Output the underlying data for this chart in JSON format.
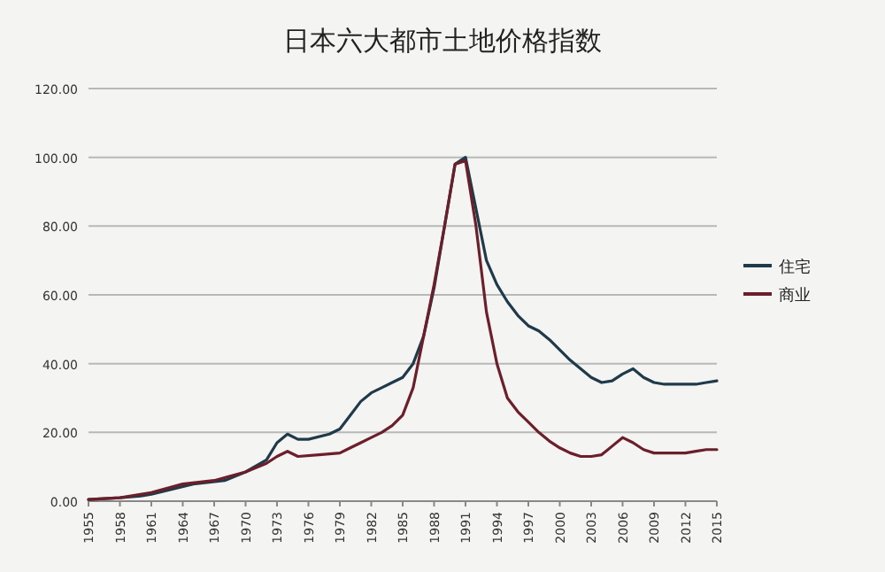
{
  "chart_data": {
    "type": "line",
    "title": "日本六大都市土地价格指数",
    "xlim": [
      1955,
      2015
    ],
    "xticks": [
      1955,
      1958,
      1961,
      1964,
      1967,
      1970,
      1973,
      1976,
      1979,
      1982,
      1985,
      1988,
      1991,
      1994,
      1997,
      2000,
      2003,
      2006,
      2009,
      2012,
      2015
    ],
    "ylim": [
      0,
      120
    ],
    "yticks": [
      {
        "value": 0,
        "label": "0.00"
      },
      {
        "value": 20,
        "label": "20.00"
      },
      {
        "value": 40,
        "label": "40.00"
      },
      {
        "value": 60,
        "label": "60.00"
      },
      {
        "value": 80,
        "label": "80.00"
      },
      {
        "value": 100,
        "label": "100.00"
      },
      {
        "value": 120,
        "label": "120.00"
      }
    ],
    "grid": "y",
    "legend": "right",
    "marker": "none",
    "line_style": "solid",
    "series": [
      {
        "name": "住宅",
        "color": "#1f3a4a",
        "x": [
          1955,
          1958,
          1960,
          1961,
          1963,
          1965,
          1968,
          1970,
          1972,
          1973,
          1974,
          1975,
          1976,
          1978,
          1979,
          1980,
          1981,
          1982,
          1983,
          1984,
          1985,
          1986,
          1987,
          1988,
          1989,
          1990,
          1991,
          1992,
          1993,
          1994,
          1995,
          1996,
          1997,
          1998,
          1999,
          2000,
          2001,
          2002,
          2003,
          2004,
          2005,
          2006,
          2007,
          2008,
          2009,
          2010,
          2011,
          2012,
          2013,
          2014,
          2015
        ],
        "values": [
          0.5,
          1,
          1.5,
          2,
          3.5,
          5,
          6,
          8.5,
          12,
          17,
          19.5,
          18,
          18,
          19.5,
          21,
          25,
          29,
          31.5,
          33,
          34.5,
          36,
          40,
          48,
          62,
          80,
          98,
          100,
          85,
          70,
          63,
          58,
          54,
          51,
          49.5,
          47,
          44,
          41,
          38.5,
          36,
          34.5,
          35,
          37,
          38.5,
          36,
          34.5,
          34,
          34,
          34,
          34,
          34.5,
          35
        ]
      },
      {
        "name": "商业",
        "color": "#6b1f2a",
        "x": [
          1955,
          1958,
          1961,
          1964,
          1967,
          1970,
          1972,
          1973,
          1974,
          1975,
          1977,
          1979,
          1980,
          1981,
          1982,
          1983,
          1984,
          1985,
          1986,
          1987,
          1988,
          1989,
          1990,
          1991,
          1992,
          1993,
          1994,
          1995,
          1996,
          1997,
          1998,
          1999,
          2000,
          2001,
          2002,
          2003,
          2004,
          2005,
          2006,
          2007,
          2008,
          2009,
          2010,
          2011,
          2012,
          2013,
          2014,
          2015
        ],
        "values": [
          0.5,
          1,
          2.5,
          5,
          6,
          8.5,
          11,
          13,
          14.5,
          13,
          13.5,
          14,
          15.5,
          17,
          18.5,
          20,
          22,
          25,
          33,
          48,
          63,
          80,
          98,
          99,
          80,
          55,
          40,
          30,
          26,
          23,
          20,
          17.5,
          15.5,
          14,
          13,
          13,
          13.5,
          16,
          18.5,
          17,
          15,
          14,
          14,
          14,
          14,
          14.5,
          15,
          15
        ]
      }
    ]
  }
}
